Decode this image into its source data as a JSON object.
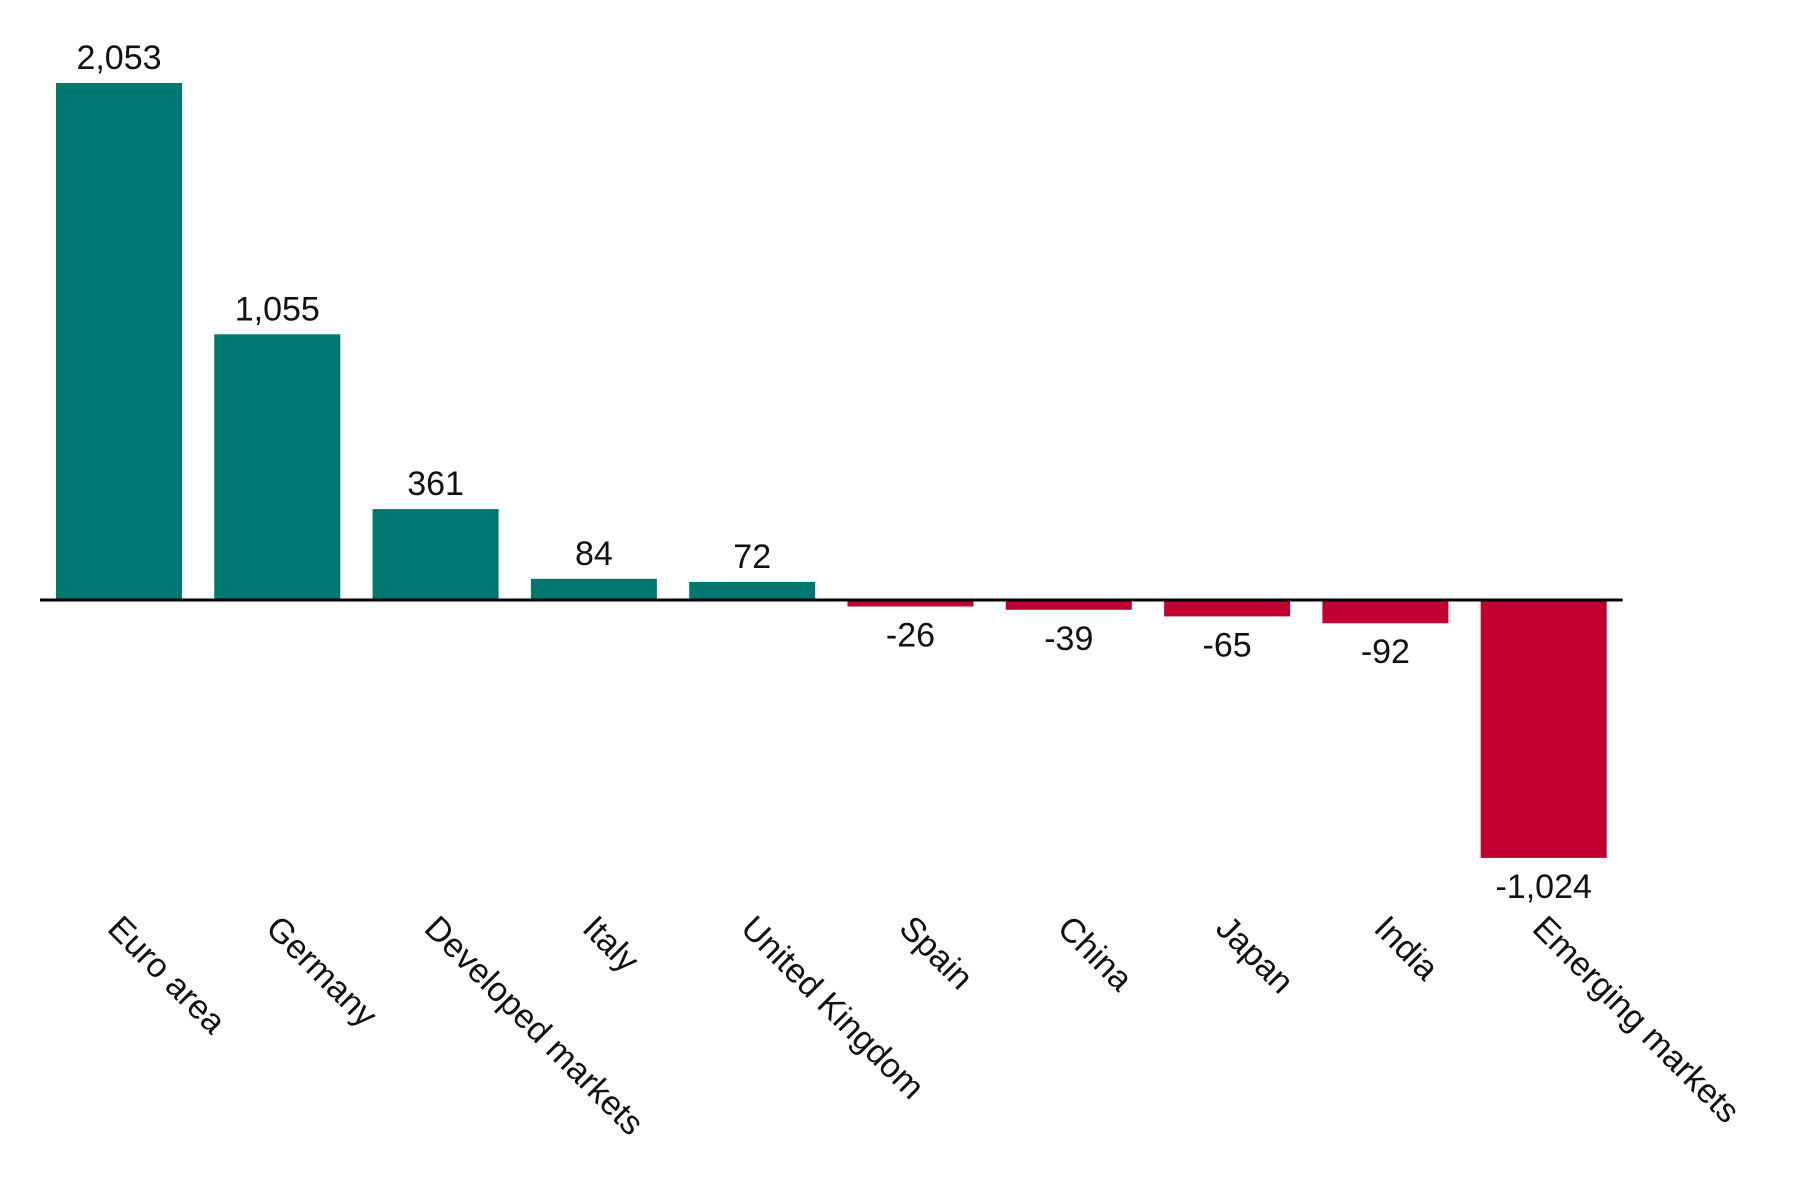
{
  "chart_data": {
    "type": "bar",
    "title": "",
    "xlabel": "",
    "ylabel": "",
    "categories": [
      "Euro area",
      "Germany",
      "Developed markets",
      "Italy",
      "United Kingdom",
      "Spain",
      "China",
      "Japan",
      "India",
      "Emerging markets"
    ],
    "values": [
      2053,
      1055,
      361,
      84,
      72,
      -26,
      -39,
      -65,
      -92,
      -1024
    ],
    "value_labels": [
      "2,053",
      "1,055",
      "361",
      "84",
      "72",
      "-26",
      "-39",
      "-65",
      "-92",
      "-1,024"
    ],
    "ylim": [
      -1024,
      2053
    ],
    "grid": false,
    "legend": "none",
    "colors": {
      "positive": "#007872",
      "negative": "#C0002E",
      "axis": "#000000"
    }
  }
}
